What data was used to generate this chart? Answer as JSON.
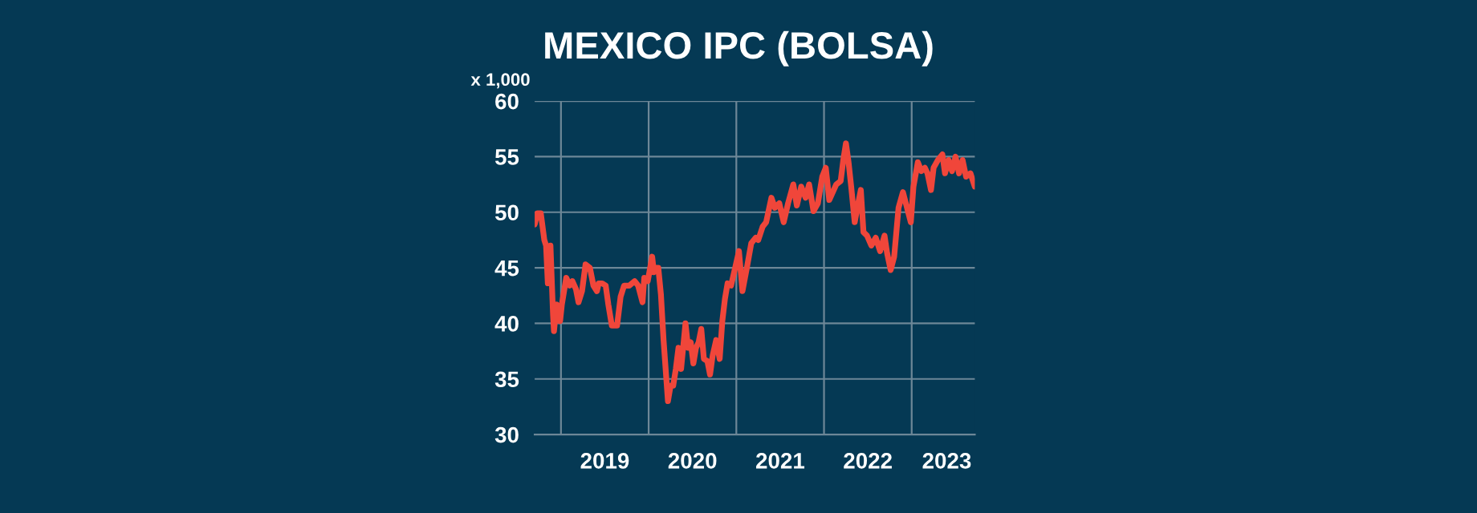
{
  "chart_data": {
    "type": "line",
    "title": "MEXICO IPC (BOLSA)",
    "ylabel": "x 1,000",
    "xlim": [
      2018.7,
      2023.72
    ],
    "xticks": [
      {
        "value": 2019,
        "label": null
      },
      {
        "value": 2019.5,
        "label": "2019"
      },
      {
        "value": 2020,
        "label": null
      },
      {
        "value": 2020.5,
        "label": "2020"
      },
      {
        "value": 2021,
        "label": null
      },
      {
        "value": 2021.5,
        "label": "2021"
      },
      {
        "value": 2022,
        "label": null
      },
      {
        "value": 2022.5,
        "label": "2022"
      },
      {
        "value": 2023,
        "label": null
      },
      {
        "value": 2023.4,
        "label": "2023"
      }
    ],
    "ylim": [
      30,
      60
    ],
    "yticks": [
      30,
      35,
      40,
      45,
      50,
      55,
      60
    ],
    "grid": true,
    "legend": false,
    "marker": "none",
    "line_style": "solid",
    "series": [
      {
        "color": "#f0463a",
        "x": [
          2018.7,
          2018.73,
          2018.77,
          2018.81,
          2018.83,
          2018.85,
          2018.88,
          2018.91,
          2018.92,
          2018.95,
          2018.99,
          2019.01,
          2019.06,
          2019.1,
          2019.13,
          2019.17,
          2019.2,
          2019.24,
          2019.28,
          2019.33,
          2019.37,
          2019.41,
          2019.43,
          2019.47,
          2019.51,
          2019.54,
          2019.58,
          2019.64,
          2019.68,
          2019.72,
          2019.78,
          2019.84,
          2019.88,
          2019.93,
          2019.95,
          2019.99,
          2020.04,
          2020.06,
          2020.08,
          2020.11,
          2020.14,
          2020.17,
          2020.22,
          2020.25,
          2020.28,
          2020.31,
          2020.34,
          2020.37,
          2020.42,
          2020.45,
          2020.48,
          2020.51,
          2020.54,
          2020.57,
          2020.6,
          2020.63,
          2020.67,
          2020.7,
          2020.73,
          2020.77,
          2020.81,
          2020.84,
          2020.87,
          2020.9,
          2020.94,
          2021.03,
          2021.07,
          2021.12,
          2021.17,
          2021.22,
          2021.25,
          2021.3,
          2021.34,
          2021.4,
          2021.44,
          2021.49,
          2021.54,
          2021.59,
          2021.65,
          2021.69,
          2021.74,
          2021.79,
          2021.83,
          2021.88,
          2021.93,
          2021.98,
          2022.02,
          2022.06,
          2022.1,
          2022.14,
          2022.19,
          2022.22,
          2022.25,
          2022.28,
          2022.31,
          2022.35,
          2022.39,
          2022.42,
          2022.45,
          2022.49,
          2022.54,
          2022.59,
          2022.64,
          2022.69,
          2022.72,
          2022.76,
          2022.8,
          2022.85,
          2022.9,
          2022.94,
          2022.99,
          2023.02,
          2023.07,
          2023.11,
          2023.15,
          2023.18,
          2023.22,
          2023.25,
          2023.3,
          2023.35,
          2023.38,
          2023.42,
          2023.46,
          2023.5,
          2023.54,
          2023.58,
          2023.62,
          2023.67,
          2023.72
        ],
        "values": [
          48.9,
          49.9,
          49.9,
          47.5,
          47.0,
          43.6,
          47.0,
          40.7,
          39.3,
          41.7,
          40.2,
          41.7,
          44.1,
          43.4,
          43.8,
          43.1,
          41.9,
          42.9,
          45.3,
          45.0,
          43.4,
          42.9,
          43.6,
          43.6,
          43.4,
          41.7,
          39.8,
          39.8,
          42.4,
          43.4,
          43.4,
          43.8,
          43.4,
          41.9,
          44.1,
          43.8,
          46.0,
          44.6,
          45.0,
          45.0,
          42.6,
          38.5,
          33.0,
          34.4,
          34.4,
          35.9,
          37.8,
          35.9,
          40.0,
          37.8,
          38.3,
          36.4,
          37.8,
          38.3,
          39.5,
          36.8,
          36.6,
          35.4,
          37.1,
          38.5,
          36.8,
          40.2,
          42.2,
          43.6,
          43.4,
          46.5,
          42.9,
          45.0,
          47.2,
          47.7,
          47.5,
          48.7,
          49.1,
          51.3,
          50.4,
          50.8,
          49.1,
          50.8,
          52.5,
          50.6,
          52.3,
          51.3,
          52.5,
          50.1,
          50.8,
          53.2,
          54.0,
          51.1,
          51.8,
          52.5,
          52.8,
          54.7,
          56.2,
          54.5,
          52.3,
          49.1,
          50.8,
          52.0,
          48.2,
          47.9,
          47.0,
          47.7,
          46.5,
          47.9,
          46.3,
          44.8,
          46.0,
          50.4,
          51.8,
          50.6,
          49.1,
          52.3,
          54.5,
          53.7,
          54.0,
          53.5,
          52.0,
          54.0,
          54.7,
          55.2,
          53.5,
          54.7,
          53.7,
          55.0,
          53.5,
          54.7,
          53.2,
          53.5,
          52.3
        ]
      }
    ]
  }
}
